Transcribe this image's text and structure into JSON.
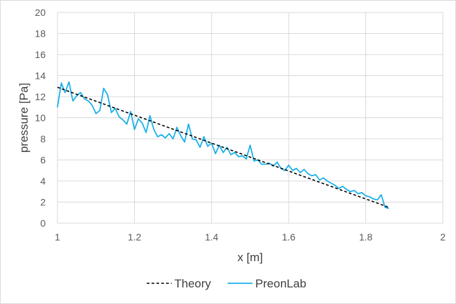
{
  "chart_data": {
    "type": "line",
    "xlabel": "x [m]",
    "ylabel": "pressure [Pa]",
    "xlim": [
      1,
      2
    ],
    "ylim": [
      0,
      20
    ],
    "x_ticks": [
      "1",
      "1.2",
      "1.4",
      "1.6",
      "1.8",
      "2"
    ],
    "y_ticks": [
      "0",
      "2",
      "4",
      "6",
      "8",
      "10",
      "12",
      "14",
      "16",
      "18",
      "20"
    ],
    "grid": true,
    "legend_position": "bottom",
    "series": [
      {
        "name": "Theory",
        "color": "#000000",
        "style": "dashed",
        "x": [
          1.0,
          1.86
        ],
        "y": [
          12.9,
          1.5
        ]
      },
      {
        "name": "PreonLab",
        "color": "#1ab0e8",
        "style": "solid",
        "x": [
          1.0,
          1.01,
          1.02,
          1.03,
          1.04,
          1.05,
          1.06,
          1.07,
          1.08,
          1.09,
          1.1,
          1.11,
          1.12,
          1.13,
          1.14,
          1.15,
          1.16,
          1.17,
          1.18,
          1.19,
          1.2,
          1.21,
          1.22,
          1.23,
          1.24,
          1.25,
          1.26,
          1.27,
          1.28,
          1.29,
          1.3,
          1.31,
          1.32,
          1.33,
          1.34,
          1.35,
          1.36,
          1.37,
          1.38,
          1.39,
          1.4,
          1.41,
          1.42,
          1.43,
          1.44,
          1.45,
          1.46,
          1.47,
          1.48,
          1.49,
          1.5,
          1.51,
          1.52,
          1.53,
          1.54,
          1.55,
          1.56,
          1.57,
          1.58,
          1.59,
          1.6,
          1.61,
          1.62,
          1.63,
          1.64,
          1.65,
          1.66,
          1.67,
          1.68,
          1.69,
          1.7,
          1.71,
          1.72,
          1.73,
          1.74,
          1.75,
          1.76,
          1.77,
          1.78,
          1.79,
          1.8,
          1.81,
          1.82,
          1.83,
          1.84,
          1.85,
          1.86
        ],
        "y": [
          11.0,
          13.3,
          12.4,
          13.4,
          11.6,
          12.1,
          12.4,
          11.8,
          11.6,
          11.2,
          10.4,
          10.7,
          12.8,
          12.2,
          10.5,
          10.9,
          10.1,
          9.8,
          9.4,
          10.6,
          8.9,
          9.9,
          9.5,
          8.6,
          10.2,
          8.9,
          8.2,
          8.4,
          8.1,
          8.5,
          8.0,
          9.1,
          8.3,
          7.7,
          9.4,
          8.0,
          7.9,
          7.2,
          8.2,
          7.3,
          7.6,
          6.6,
          7.4,
          6.7,
          7.2,
          6.5,
          6.7,
          6.3,
          6.4,
          6.1,
          7.4,
          5.9,
          6.0,
          5.6,
          5.6,
          5.7,
          5.4,
          5.8,
          5.2,
          5.0,
          5.5,
          5.0,
          5.2,
          4.8,
          5.1,
          4.7,
          4.5,
          4.6,
          4.1,
          4.3,
          4.0,
          3.8,
          3.6,
          3.3,
          3.5,
          3.2,
          3.0,
          3.1,
          2.8,
          2.9,
          2.6,
          2.5,
          2.3,
          2.2,
          2.7,
          1.5,
          1.4
        ]
      }
    ]
  }
}
